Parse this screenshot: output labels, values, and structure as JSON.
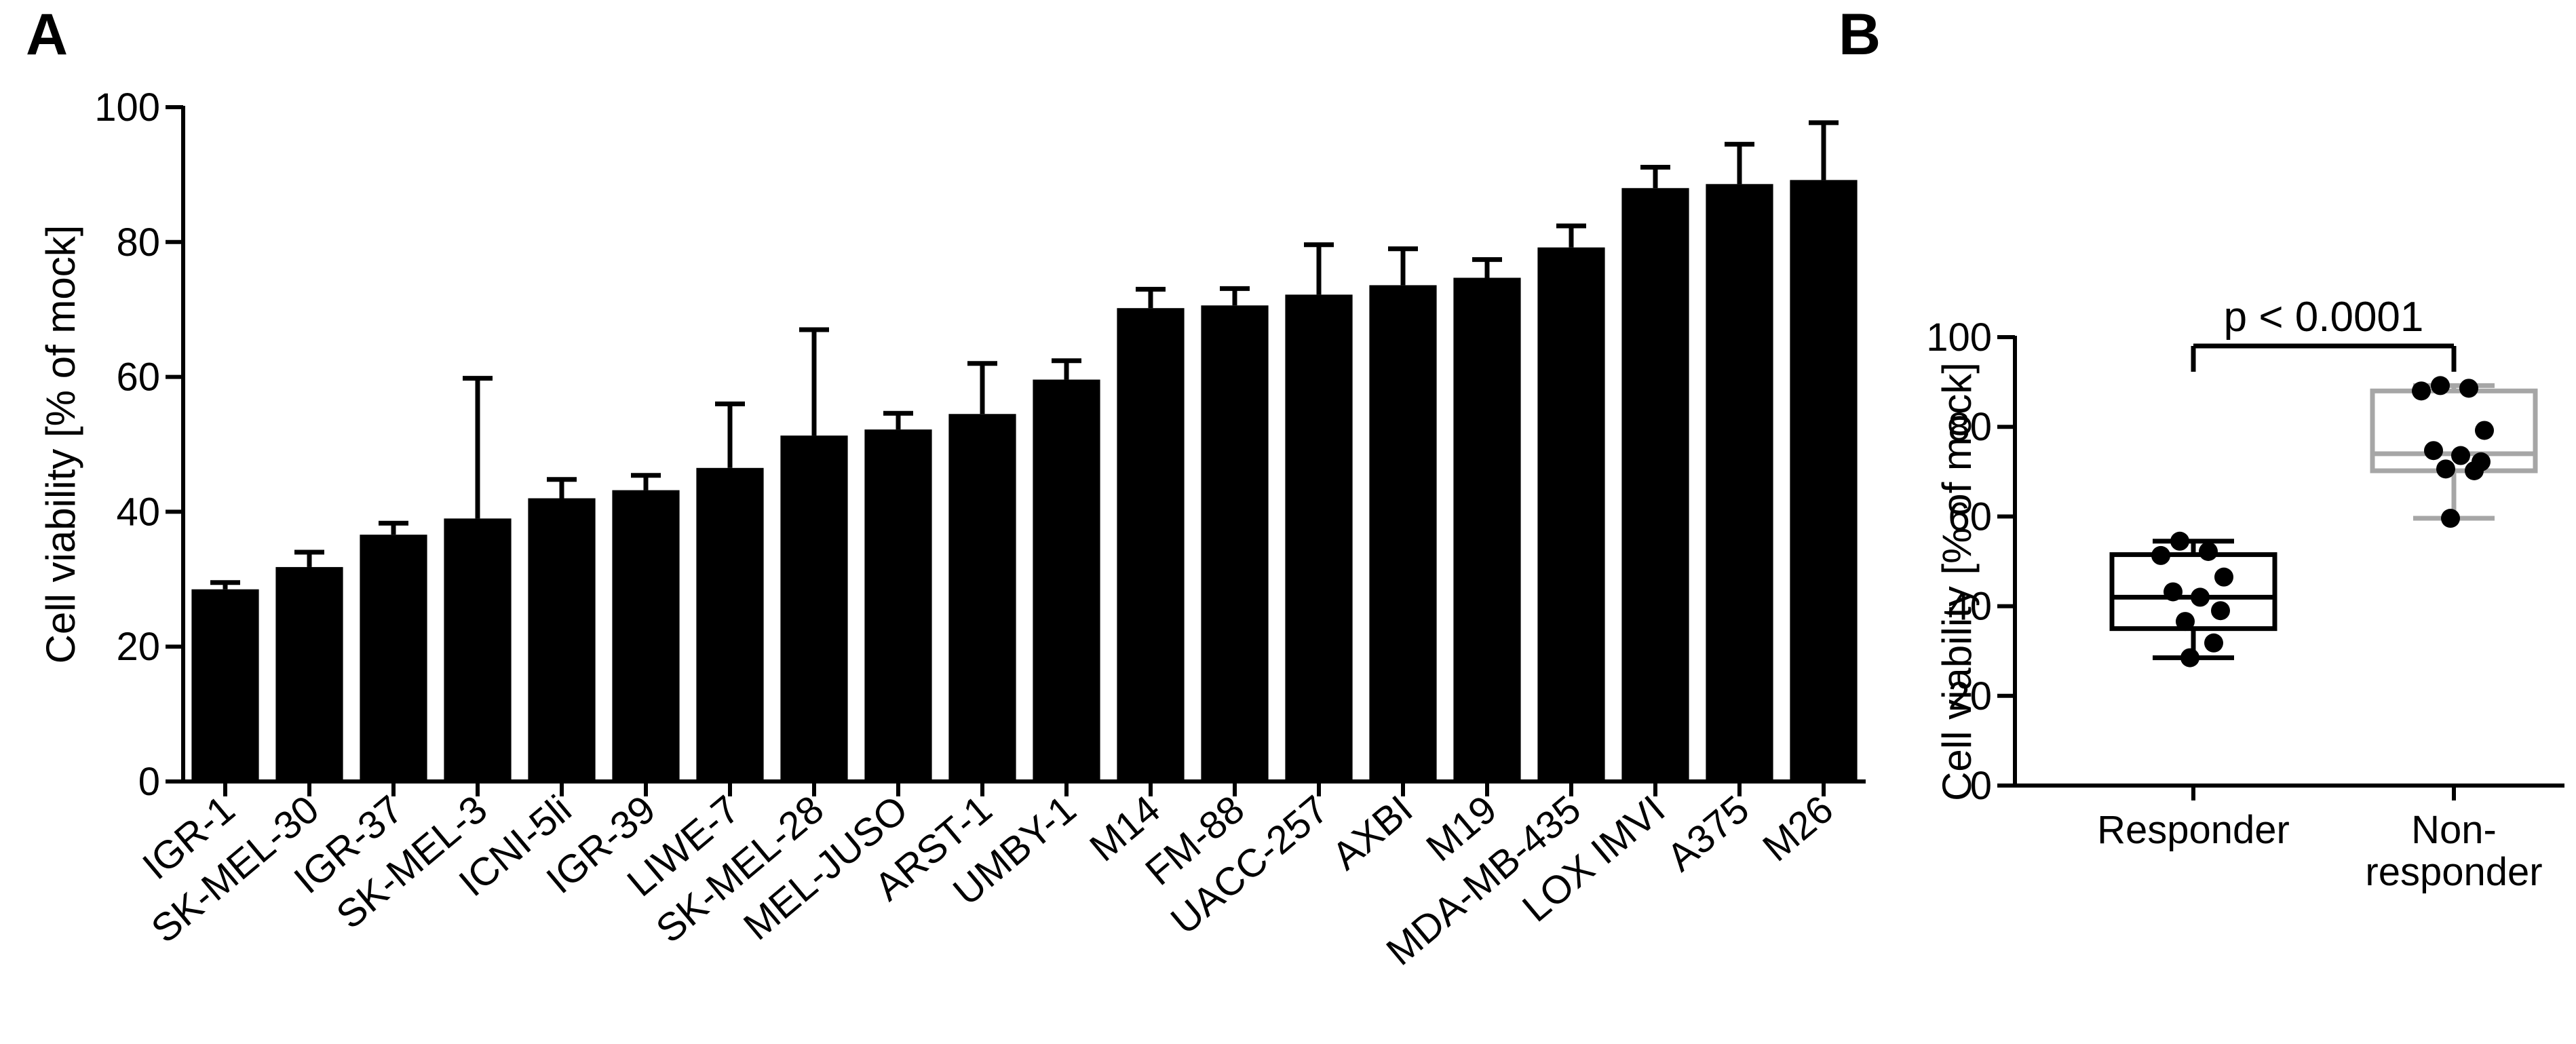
{
  "panel_labels": {
    "a": "A",
    "b": "B"
  },
  "chart_data": [
    {
      "type": "bar",
      "panel": "A",
      "ylabel": "Cell viability [% of mock]",
      "ylim": [
        0,
        100
      ],
      "yticks": [
        0,
        20,
        40,
        60,
        80,
        100
      ],
      "categories": [
        "IGR-1",
        "SK-MEL-30",
        "IGR-37",
        "SK-MEL-3",
        "ICNI-5li",
        "IGR-39",
        "LIWE-7",
        "SK-MEL-28",
        "MEL-JUSO",
        "ARST-1",
        "UMBY-1",
        "M14",
        "FM-88",
        "UACC-257",
        "AXBI",
        "M19",
        "MDA-MB-435",
        "LOX IMVI",
        "A375",
        "M26"
      ],
      "values": [
        28.5,
        31.8,
        36.6,
        39.0,
        42.0,
        43.2,
        46.5,
        51.3,
        52.2,
        54.5,
        59.6,
        70.2,
        70.6,
        72.2,
        73.6,
        74.7,
        79.2,
        88.0,
        88.6,
        89.2
      ],
      "error_upper": [
        29.5,
        34.0,
        38.3,
        59.8,
        44.8,
        45.4,
        56.0,
        67.0,
        54.6,
        62.0,
        62.4,
        73.0,
        73.1,
        79.6,
        79.0,
        77.4,
        82.4,
        91.1,
        94.5,
        97.7
      ],
      "bar_color": "#000000"
    },
    {
      "type": "box",
      "panel": "B",
      "ylabel": "Cell viability [% of mock]",
      "ylim": [
        0,
        100
      ],
      "yticks": [
        0,
        20,
        40,
        60,
        80,
        100
      ],
      "categories": [
        "Responder",
        "Non-responder"
      ],
      "category_lines": [
        [
          "Responder"
        ],
        [
          "Non-",
          "responder"
        ]
      ],
      "groups": [
        {
          "name": "Responder",
          "color": "#000000",
          "min": 28.5,
          "q1": 35.0,
          "median": 42.0,
          "q3": 51.5,
          "max": 54.5,
          "points": [
            54.5,
            52.2,
            51.3,
            46.5,
            43.2,
            42.0,
            39.0,
            36.6,
            31.8,
            28.5
          ]
        },
        {
          "name": "Non-responder",
          "color": "#a6a6a6",
          "min": 59.6,
          "q1": 70.2,
          "median": 74.0,
          "q3": 88.0,
          "max": 89.2,
          "points": [
            89.2,
            88.6,
            88.0,
            79.2,
            74.7,
            73.6,
            72.2,
            70.6,
            70.2,
            59.6
          ]
        }
      ],
      "significance": "p < 0.0001"
    }
  ]
}
